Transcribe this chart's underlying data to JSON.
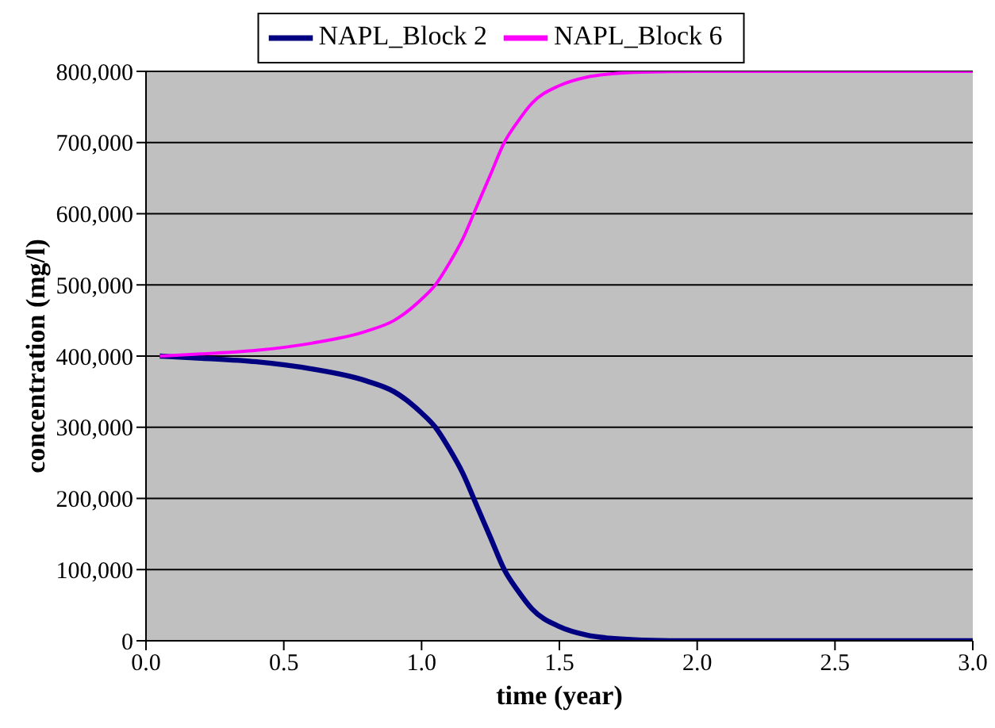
{
  "chart_data": {
    "type": "line",
    "xlabel": "time (year)",
    "ylabel": "concentration (mg/l)",
    "x": [
      0.05,
      0.2,
      0.4,
      0.6,
      0.8,
      0.9,
      1.0,
      1.05,
      1.1,
      1.15,
      1.2,
      1.25,
      1.3,
      1.35,
      1.4,
      1.5,
      1.6,
      1.7,
      1.8,
      2.0,
      2.5,
      3.0
    ],
    "series": [
      {
        "name": "NAPL_Block 2",
        "color": "#000080",
        "values": [
          400000,
          397000,
          392000,
          382000,
          365000,
          350000,
          320000,
          300000,
          270000,
          235000,
          190000,
          145000,
          100000,
          70000,
          45000,
          20000,
          8000,
          3000,
          1000,
          0,
          0,
          0
        ]
      },
      {
        "name": "NAPL_Block 6",
        "color": "#ff00ff",
        "values": [
          400000,
          403000,
          408000,
          418000,
          435000,
          450000,
          480000,
          500000,
          530000,
          565000,
          610000,
          655000,
          700000,
          730000,
          755000,
          780000,
          792000,
          797000,
          799000,
          800000,
          800000,
          800000
        ]
      }
    ],
    "xlim": [
      0,
      3
    ],
    "xticks": [
      {
        "value": 0,
        "label": "0.0"
      },
      {
        "value": 0.5,
        "label": "0.5"
      },
      {
        "value": 1,
        "label": "1.0"
      },
      {
        "value": 1.5,
        "label": "1.5"
      },
      {
        "value": 2,
        "label": "2.0"
      },
      {
        "value": 2.5,
        "label": "2.5"
      },
      {
        "value": 3,
        "label": "3.0"
      }
    ],
    "ylim": [
      0,
      800000
    ],
    "yticks": [
      {
        "value": 0,
        "label": "0"
      },
      {
        "value": 100000,
        "label": "100,000"
      },
      {
        "value": 200000,
        "label": "200,000"
      },
      {
        "value": 300000,
        "label": "300,000"
      },
      {
        "value": 400000,
        "label": "400,000"
      },
      {
        "value": 500000,
        "label": "500,000"
      },
      {
        "value": 600000,
        "label": "600,000"
      },
      {
        "value": 700000,
        "label": "700,000"
      },
      {
        "value": 800000,
        "label": "800,000"
      }
    ],
    "grid": "y",
    "legend": "top",
    "marker": "none",
    "line_style": "solid"
  }
}
